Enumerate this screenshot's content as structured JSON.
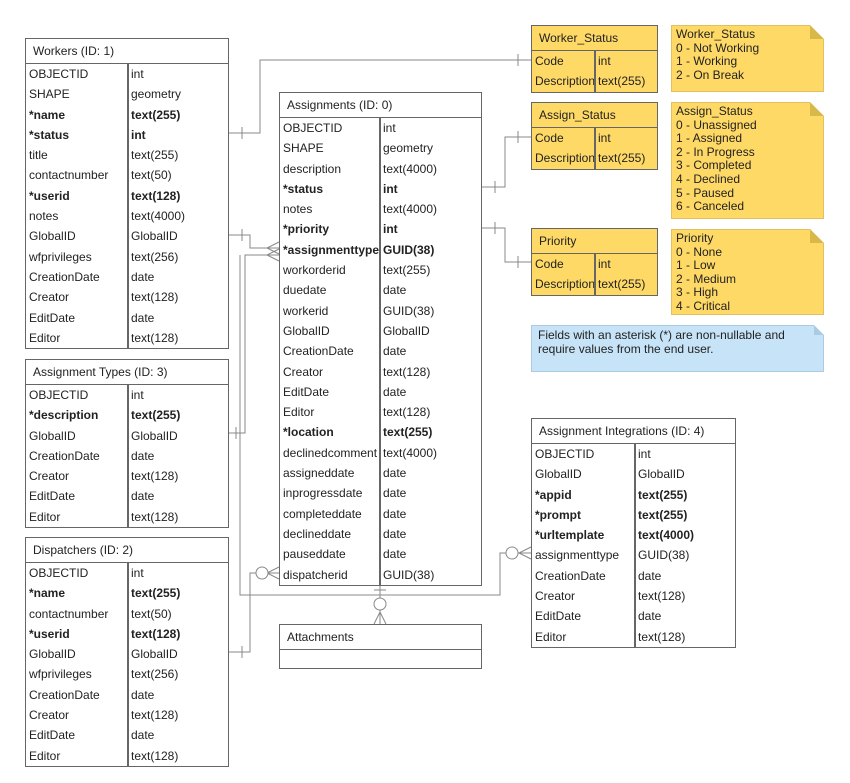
{
  "tables": {
    "workers": {
      "title": "Workers (ID: 1)",
      "rows": [
        [
          "OBJECTID",
          "int",
          0
        ],
        [
          "SHAPE",
          "geometry",
          0
        ],
        [
          "*name",
          "text(255)",
          1
        ],
        [
          "*status",
          "int",
          1
        ],
        [
          "title",
          "text(255)",
          0
        ],
        [
          "contactnumber",
          "text(50)",
          0
        ],
        [
          "*userid",
          "text(128)",
          1
        ],
        [
          "notes",
          "text(4000)",
          0
        ],
        [
          "GlobalID",
          "GlobalID",
          0
        ],
        [
          "wfprivileges",
          "text(256)",
          0
        ],
        [
          "CreationDate",
          "date",
          0
        ],
        [
          "Creator",
          "text(128)",
          0
        ],
        [
          "EditDate",
          "date",
          0
        ],
        [
          "Editor",
          "text(128)",
          0
        ]
      ]
    },
    "assignments": {
      "title": "Assignments (ID: 0)",
      "rows": [
        [
          "OBJECTID",
          "int",
          0
        ],
        [
          "SHAPE",
          "geometry",
          0
        ],
        [
          "description",
          "text(4000)",
          0
        ],
        [
          "*status",
          "int",
          1
        ],
        [
          "notes",
          "text(4000)",
          0
        ],
        [
          "*priority",
          "int",
          1
        ],
        [
          "*assignmenttype",
          "GUID(38)",
          1
        ],
        [
          "workorderid",
          "text(255)",
          0
        ],
        [
          "duedate",
          "date",
          0
        ],
        [
          "workerid",
          "GUID(38)",
          0
        ],
        [
          "GlobalID",
          "GlobalID",
          0
        ],
        [
          "CreationDate",
          "date",
          0
        ],
        [
          "Creator",
          "text(128)",
          0
        ],
        [
          "EditDate",
          "date",
          0
        ],
        [
          "Editor",
          "text(128)",
          0
        ],
        [
          "*location",
          "text(255)",
          1
        ],
        [
          "declinedcomment",
          "text(4000)",
          0
        ],
        [
          "assigneddate",
          "date",
          0
        ],
        [
          "inprogressdate",
          "date",
          0
        ],
        [
          "completeddate",
          "date",
          0
        ],
        [
          "declineddate",
          "date",
          0
        ],
        [
          "pauseddate",
          "date",
          0
        ],
        [
          "dispatcherid",
          "GUID(38)",
          0
        ]
      ]
    },
    "assignment_types": {
      "title": "Assignment Types (ID: 3)",
      "rows": [
        [
          "OBJECTID",
          "int",
          0
        ],
        [
          "*description",
          "text(255)",
          1
        ],
        [
          "GlobalID",
          "GlobalID",
          0
        ],
        [
          "CreationDate",
          "date",
          0
        ],
        [
          "Creator",
          "text(128)",
          0
        ],
        [
          "EditDate",
          "date",
          0
        ],
        [
          "Editor",
          "text(128)",
          0
        ]
      ]
    },
    "dispatchers": {
      "title": "Dispatchers (ID: 2)",
      "rows": [
        [
          "OBJECTID",
          "int",
          0
        ],
        [
          "*name",
          "text(255)",
          1
        ],
        [
          "contactnumber",
          "text(50)",
          0
        ],
        [
          "*userid",
          "text(128)",
          1
        ],
        [
          "GlobalID",
          "GlobalID",
          0
        ],
        [
          "wfprivileges",
          "text(256)",
          0
        ],
        [
          "CreationDate",
          "date",
          0
        ],
        [
          "Creator",
          "text(128)",
          0
        ],
        [
          "EditDate",
          "date",
          0
        ],
        [
          "Editor",
          "text(128)",
          0
        ]
      ]
    },
    "worker_status": {
      "title": "Worker_Status",
      "rows": [
        [
          "Code",
          "int",
          0
        ],
        [
          "Description",
          "text(255)",
          0
        ]
      ]
    },
    "assign_status": {
      "title": "Assign_Status",
      "rows": [
        [
          "Code",
          "int",
          0
        ],
        [
          "Description",
          "text(255)",
          0
        ]
      ]
    },
    "priority": {
      "title": "Priority",
      "rows": [
        [
          "Code",
          "int",
          0
        ],
        [
          "Description",
          "text(255)",
          0
        ]
      ]
    },
    "assignment_integrations": {
      "title": "Assignment Integrations (ID: 4)",
      "rows": [
        [
          "OBJECTID",
          "int",
          0
        ],
        [
          "GlobalID",
          "GlobalID",
          0
        ],
        [
          "*appid",
          "text(255)",
          1
        ],
        [
          "*prompt",
          "text(255)",
          1
        ],
        [
          "*urltemplate",
          "text(4000)",
          1
        ],
        [
          "assignmenttype",
          "GUID(38)",
          0
        ],
        [
          "CreationDate",
          "date",
          0
        ],
        [
          "Creator",
          "text(128)",
          0
        ],
        [
          "EditDate",
          "date",
          0
        ],
        [
          "Editor",
          "text(128)",
          0
        ]
      ]
    },
    "attachments": {
      "title": "Attachments",
      "rows": []
    }
  },
  "notes": {
    "worker_status": [
      "Worker_Status",
      "0 - Not Working",
      "1 - Working",
      "2 - On Break"
    ],
    "assign_status": [
      "Assign_Status",
      "0 - Unassigned",
      "1 - Assigned",
      "2 - In Progress",
      "3 - Completed",
      "4 - Declined",
      "5 - Paused",
      "6 - Canceled"
    ],
    "priority": [
      "Priority",
      "0 - None",
      "1 - Low",
      "2 - Medium",
      "3 - High",
      "4 - Critical"
    ],
    "info": "Fields with an asterisk (*) are non-nullable and require values from the end user."
  },
  "colors": {
    "lookup_fill": "#ffd966",
    "info_fill": "#c6e3f7",
    "line": "#888888"
  }
}
